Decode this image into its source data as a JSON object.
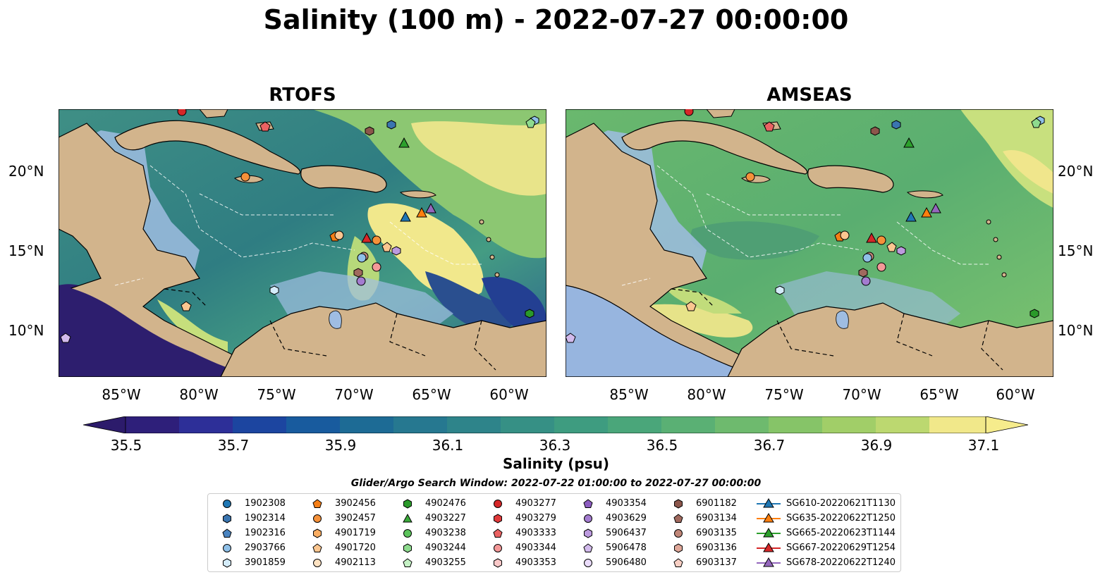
{
  "title": "Salinity (100 m) - 2022-07-27 00:00:00",
  "panels": [
    {
      "title": "RTOFS"
    },
    {
      "title": "AMSEAS"
    }
  ],
  "axes": {
    "lat_ticks": [
      "20°N",
      "15°N",
      "10°N"
    ],
    "lon_ticks": [
      "85°W",
      "80°W",
      "75°W",
      "70°W",
      "65°W",
      "60°W"
    ]
  },
  "colorbar": {
    "label": "Salinity (psu)",
    "ticks": [
      "35.5",
      "35.7",
      "35.9",
      "36.1",
      "36.3",
      "36.5",
      "36.7",
      "36.9",
      "37.1"
    ],
    "range": [
      35.5,
      37.2
    ],
    "extend": "both",
    "colormap": "summer-like yellow-green-blue"
  },
  "search_window": "Glider/Argo Search Window: 2022-07-22 01:00:00 to 2022-07-27 00:00:00",
  "legend": [
    {
      "label": "1902308",
      "marker": "circle",
      "color": "#1f77b4"
    },
    {
      "label": "1902314",
      "marker": "hexagon",
      "color": "#3a75b0"
    },
    {
      "label": "1902316",
      "marker": "pentagon",
      "color": "#4a84c0"
    },
    {
      "label": "2903766",
      "marker": "circle",
      "color": "#8fc0e8"
    },
    {
      "label": "3901859",
      "marker": "hexagon",
      "color": "#d4ecfa"
    },
    {
      "label": "3902456",
      "marker": "pentagon",
      "color": "#f57f16"
    },
    {
      "label": "3902457",
      "marker": "circle",
      "color": "#f5913a"
    },
    {
      "label": "4901719",
      "marker": "hexagon",
      "color": "#f9ad62"
    },
    {
      "label": "4901720",
      "marker": "pentagon",
      "color": "#fbc690"
    },
    {
      "label": "4902113",
      "marker": "circle",
      "color": "#fde2c2"
    },
    {
      "label": "4902476",
      "marker": "hexagon",
      "color": "#2a9a2a"
    },
    {
      "label": "4903227",
      "marker": "triangle",
      "color": "#3aa93a"
    },
    {
      "label": "4903238",
      "marker": "circle",
      "color": "#5cc45c"
    },
    {
      "label": "4903244",
      "marker": "hexagon",
      "color": "#8edb8e"
    },
    {
      "label": "4903255",
      "marker": "pentagon",
      "color": "#c4f0c4"
    },
    {
      "label": "4903277",
      "marker": "circle",
      "color": "#d62728"
    },
    {
      "label": "4903279",
      "marker": "hexagon",
      "color": "#e0393a"
    },
    {
      "label": "4903333",
      "marker": "pentagon",
      "color": "#ea6262"
    },
    {
      "label": "4903344",
      "marker": "circle",
      "color": "#f49898"
    },
    {
      "label": "4903353",
      "marker": "hexagon",
      "color": "#f9c8c8"
    },
    {
      "label": "4903354",
      "marker": "pentagon",
      "color": "#8c5cc0"
    },
    {
      "label": "4903629",
      "marker": "circle",
      "color": "#a47cd0"
    },
    {
      "label": "5906437",
      "marker": "hexagon",
      "color": "#bc9ade"
    },
    {
      "label": "5906478",
      "marker": "pentagon",
      "color": "#d2baec"
    },
    {
      "label": "5906480",
      "marker": "circle",
      "color": "#eadcfa"
    },
    {
      "label": "6901182",
      "marker": "hexagon",
      "color": "#8c564b"
    },
    {
      "label": "6903134",
      "marker": "pentagon",
      "color": "#a0695e"
    },
    {
      "label": "6903135",
      "marker": "circle",
      "color": "#c08678"
    },
    {
      "label": "6903136",
      "marker": "hexagon",
      "color": "#e0a89a"
    },
    {
      "label": "6903137",
      "marker": "pentagon",
      "color": "#f8cfc4"
    },
    {
      "label": "SG610-20220621T1130",
      "marker": "triangle-line",
      "color": "#1f77b4"
    },
    {
      "label": "SG635-20220622T1250",
      "marker": "triangle-line",
      "color": "#ff7f0e"
    },
    {
      "label": "SG665-20220623T1144",
      "marker": "triangle-line",
      "color": "#2ca02c"
    },
    {
      "label": "SG667-20220629T1254",
      "marker": "triangle-line",
      "color": "#d62728"
    },
    {
      "label": "SG678-20220622T1240",
      "marker": "triangle-line",
      "color": "#9467bd"
    }
  ],
  "colors": {
    "land": "#d2b48c",
    "shelf": "#a3bfe0",
    "sea_mid": "#3d9a8a",
    "sea_hi": "#f3e88a",
    "sea_lo": "#2d1e6e"
  }
}
